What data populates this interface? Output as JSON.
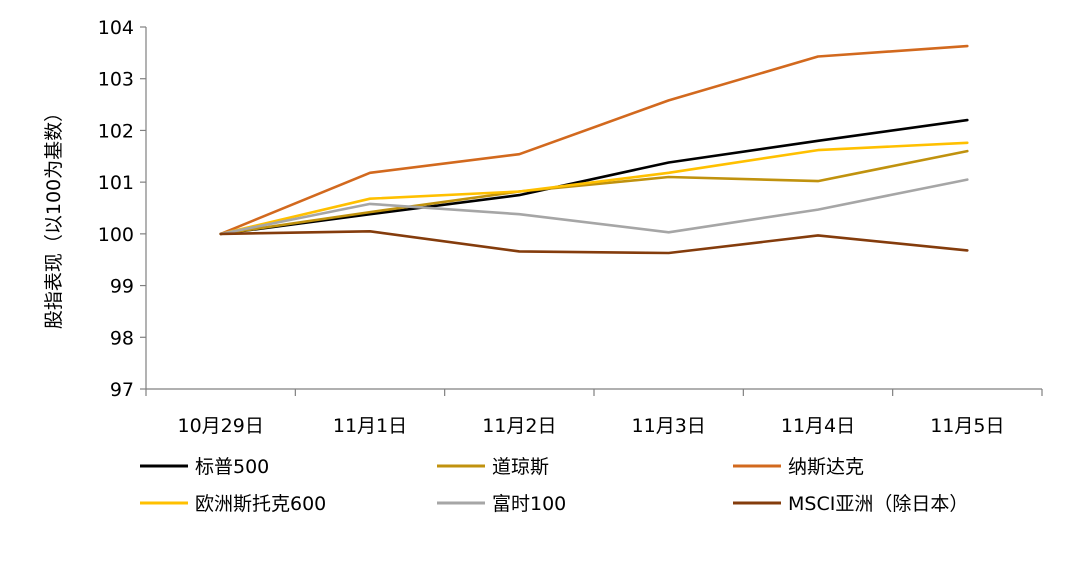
{
  "chart_data": {
    "type": "line",
    "ylabel": "股指表现（以100为基数）",
    "xlabel": "",
    "categories": [
      "10月29日",
      "11月1日",
      "11月2日",
      "11月3日",
      "11月4日",
      "11月5日"
    ],
    "ylim": [
      97,
      104
    ],
    "yticks": [
      97,
      98,
      99,
      100,
      101,
      102,
      103,
      104
    ],
    "grid": false,
    "legend_position": "bottom",
    "series": [
      {
        "name": "标普500",
        "color": "#000000",
        "values": [
          100.0,
          100.38,
          100.75,
          101.38,
          101.8,
          102.2
        ]
      },
      {
        "name": "道琼斯",
        "color": "#C0920E",
        "values": [
          100.0,
          100.42,
          100.82,
          101.1,
          101.02,
          101.6
        ]
      },
      {
        "name": "纳斯达克",
        "color": "#D2691E",
        "values": [
          100.0,
          101.18,
          101.54,
          102.58,
          103.43,
          103.63
        ]
      },
      {
        "name": "欧洲斯托克600",
        "color": "#FFC000",
        "values": [
          100.0,
          100.68,
          100.82,
          101.18,
          101.62,
          101.76
        ]
      },
      {
        "name": "富时100",
        "color": "#A6A6A6",
        "values": [
          100.0,
          100.58,
          100.38,
          100.03,
          100.47,
          101.05
        ]
      },
      {
        "name": "MSCI亚洲（除日本）",
        "color": "#843C0C",
        "values": [
          100.0,
          100.05,
          99.66,
          99.63,
          99.97,
          99.68
        ]
      }
    ]
  }
}
